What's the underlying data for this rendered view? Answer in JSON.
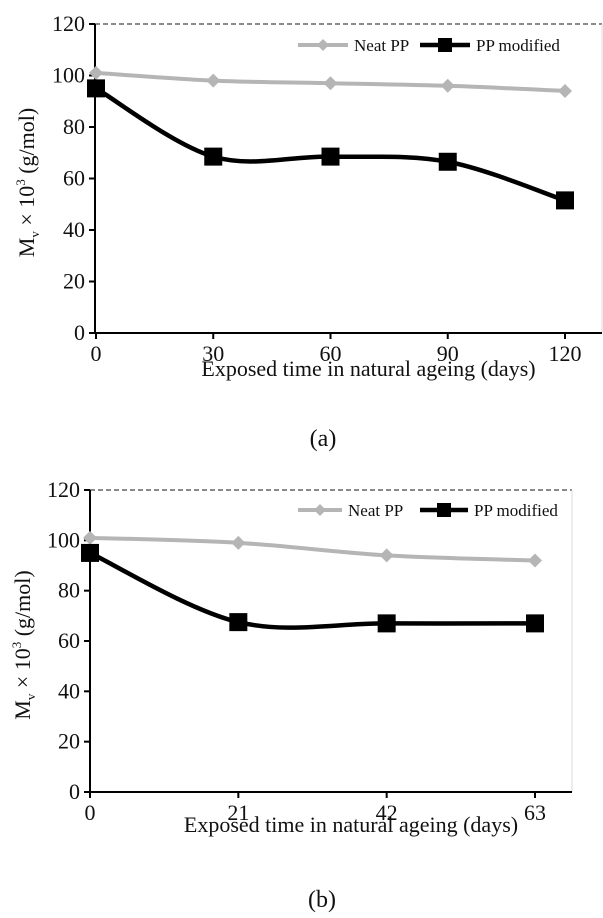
{
  "chart_data": [
    {
      "type": "line",
      "panel_label": "(a)",
      "xlabel": "Exposed time in natural ageing (days)",
      "ylabel": {
        "prefix": "M",
        "sub": "v",
        "mid": " × 10",
        "sup": "3",
        "suffix": " (g/mol)"
      },
      "x": [
        0,
        30,
        60,
        90,
        120
      ],
      "x_ticks": [
        "0",
        "30",
        "60",
        "90",
        "120"
      ],
      "y_ticks": [
        "0",
        "20",
        "40",
        "60",
        "80",
        "100",
        "120"
      ],
      "xlim": [
        0,
        130
      ],
      "ylim": [
        0,
        120
      ],
      "series": [
        {
          "name": "Neat PP",
          "values": [
            101,
            98,
            97,
            96,
            94
          ],
          "color": "#b5b5b5",
          "marker": "diamond"
        },
        {
          "name": "PP modified",
          "values": [
            95,
            68.5,
            68.5,
            66.5,
            51.5
          ],
          "color": "#000000",
          "marker": "square"
        }
      ],
      "legend": "top-right",
      "grid": false
    },
    {
      "type": "line",
      "panel_label": "(b)",
      "xlabel": "Exposed time in natural ageing (days)",
      "ylabel": {
        "prefix": "M",
        "sub": "v",
        "mid": " × 10",
        "sup": "3",
        "suffix": " (g/mol)"
      },
      "x": [
        0,
        21,
        42,
        63
      ],
      "x_ticks": [
        "0",
        "21",
        "42",
        "63"
      ],
      "y_ticks": [
        "0",
        "20",
        "40",
        "60",
        "80",
        "100",
        "120"
      ],
      "xlim": [
        0,
        70
      ],
      "ylim": [
        0,
        120
      ],
      "series": [
        {
          "name": "Neat PP",
          "values": [
            101,
            99,
            94,
            92
          ],
          "color": "#b5b5b5",
          "marker": "diamond"
        },
        {
          "name": "PP modified",
          "values": [
            95,
            67.5,
            67,
            67
          ],
          "color": "#000000",
          "marker": "square"
        }
      ],
      "legend": "top-right",
      "grid": false
    }
  ]
}
